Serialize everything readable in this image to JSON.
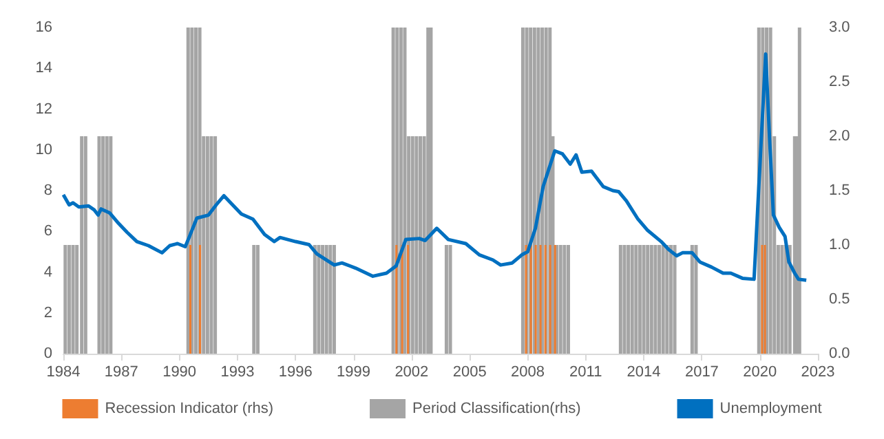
{
  "chart_data": {
    "type": "line",
    "series": [
      {
        "name": "Recession Indicator (rhs)",
        "type": "bar",
        "axis": "y2",
        "color": "#ed7d31",
        "x": [
          1990.6,
          1991.1,
          2001.25,
          2001.55,
          2001.85,
          2007.95,
          2008.2,
          2008.45,
          2008.7,
          2008.95,
          2009.2,
          2009.45,
          2020.15,
          2020.3
        ],
        "values": [
          1,
          1,
          1,
          1,
          1,
          1,
          1,
          1,
          1,
          1,
          1,
          1,
          1,
          1
        ]
      },
      {
        "name": "Period Classification(rhs)",
        "type": "bar",
        "axis": "y2",
        "color": "#a5a5a5",
        "x": [
          1984.1,
          1984.3,
          1984.5,
          1984.7,
          1984.95,
          1985.15,
          1985.85,
          1986.05,
          1986.25,
          1986.45,
          1990.45,
          1990.65,
          1990.85,
          1991.05,
          1991.25,
          1991.45,
          1991.65,
          1991.85,
          1993.85,
          1994.05,
          1997.0,
          1997.2,
          1997.4,
          1997.6,
          1997.8,
          1998.0,
          2001.05,
          2001.25,
          2001.45,
          2001.65,
          2001.85,
          2002.05,
          2002.25,
          2002.45,
          2002.65,
          2002.85,
          2003.0,
          2003.8,
          2004.0,
          2007.75,
          2007.95,
          2008.15,
          2008.35,
          2008.55,
          2008.75,
          2008.95,
          2009.15,
          2009.3,
          2009.5,
          2009.7,
          2009.9,
          2010.1,
          2012.8,
          2013.0,
          2013.2,
          2013.4,
          2013.6,
          2013.8,
          2014.0,
          2014.2,
          2014.4,
          2014.6,
          2014.8,
          2015.0,
          2015.2,
          2015.4,
          2015.6,
          2016.5,
          2016.7,
          2019.95,
          2020.15,
          2020.35,
          2020.55,
          2020.75,
          2020.95,
          2021.15,
          2021.35,
          2021.55,
          2021.8,
          2021.95,
          2022.05
        ],
        "values": [
          1,
          1,
          1,
          1,
          2,
          2,
          2,
          2,
          2,
          2,
          3,
          3,
          3,
          3,
          2,
          2,
          2,
          2,
          1,
          1,
          1,
          1,
          1,
          1,
          1,
          1,
          3,
          3,
          3,
          3,
          2,
          2,
          2,
          2,
          2,
          3,
          3,
          1,
          1,
          3,
          3,
          3,
          3,
          3,
          3,
          3,
          3,
          2,
          1,
          1,
          1,
          1,
          1,
          1,
          1,
          1,
          1,
          1,
          1,
          1,
          1,
          1,
          1,
          1,
          1,
          1,
          1,
          1,
          1,
          3,
          3,
          3,
          3,
          2,
          1,
          1,
          1,
          1,
          2,
          2,
          3
        ]
      },
      {
        "name": "Unemployment",
        "color": "#0070c0",
        "x": [
          1984.0,
          1984.3,
          1984.5,
          1984.8,
          1985.3,
          1985.6,
          1985.8,
          1985.95,
          1986.4,
          1986.8,
          1987.3,
          1987.8,
          1988.4,
          1989.1,
          1989.5,
          1989.9,
          1990.3,
          1990.5,
          1990.9,
          1991.5,
          1991.9,
          1992.3,
          1992.8,
          1993.2,
          1993.8,
          1994.4,
          1994.9,
          1995.2,
          1996.0,
          1996.7,
          1997.1,
          1998.0,
          1998.4,
          1999.1,
          2000.0,
          2000.7,
          2001.2,
          2001.7,
          2002.4,
          2002.7,
          2003.3,
          2003.9,
          2004.8,
          2005.5,
          2006.2,
          2006.6,
          2007.2,
          2007.7,
          2008.0,
          2008.4,
          2008.8,
          2009.4,
          2009.8,
          2010.2,
          2010.5,
          2010.8,
          2011.3,
          2011.9,
          2012.4,
          2012.7,
          2013.1,
          2013.7,
          2014.2,
          2014.9,
          2015.3,
          2015.7,
          2016.0,
          2016.5,
          2016.9,
          2017.5,
          2018.1,
          2018.5,
          2019.1,
          2019.7,
          2020.3,
          2020.5,
          2020.7,
          2021.0,
          2021.3,
          2021.5,
          2021.8,
          2022.0,
          2022.4
        ],
        "values": [
          7.8,
          7.3,
          7.4,
          7.2,
          7.25,
          7.05,
          6.8,
          7.1,
          6.9,
          6.45,
          5.95,
          5.5,
          5.3,
          4.95,
          5.3,
          5.4,
          5.25,
          5.7,
          6.65,
          6.8,
          7.3,
          7.75,
          7.25,
          6.85,
          6.6,
          5.85,
          5.5,
          5.7,
          5.5,
          5.35,
          4.9,
          4.35,
          4.45,
          4.2,
          3.8,
          3.95,
          4.3,
          5.6,
          5.65,
          5.55,
          6.15,
          5.6,
          5.4,
          4.85,
          4.6,
          4.35,
          4.45,
          4.85,
          5.0,
          6.15,
          8.2,
          9.95,
          9.8,
          9.3,
          9.75,
          8.9,
          8.95,
          8.2,
          8.0,
          7.95,
          7.5,
          6.6,
          6.05,
          5.5,
          5.1,
          4.8,
          4.95,
          4.95,
          4.5,
          4.25,
          3.95,
          3.95,
          3.7,
          3.65,
          14.7,
          10.6,
          6.8,
          6.2,
          5.75,
          4.5,
          3.95,
          3.65,
          3.6
        ]
      }
    ],
    "xlim": [
      1984,
      2023
    ],
    "xticks": [
      1984,
      1987,
      1990,
      1993,
      1996,
      1999,
      2002,
      2005,
      2008,
      2011,
      2014,
      2017,
      2020,
      2023
    ],
    "ylim": [
      0,
      16
    ],
    "yticks": [
      0,
      2,
      4,
      6,
      8,
      10,
      12,
      14,
      16
    ],
    "y2lim": [
      0,
      3
    ],
    "y2ticks": [
      {
        "value": 0,
        "label": "0.0"
      },
      {
        "value": 0.5,
        "label": "0.5"
      },
      {
        "value": 1,
        "label": "1.0"
      },
      {
        "value": 1.5,
        "label": "1.5"
      },
      {
        "value": 2,
        "label": "2.0"
      },
      {
        "value": 2.5,
        "label": "2.5"
      },
      {
        "value": 3,
        "label": "3.0"
      }
    ],
    "grid": false,
    "legend": "bottom",
    "marker": "none",
    "line_style": "solid"
  }
}
